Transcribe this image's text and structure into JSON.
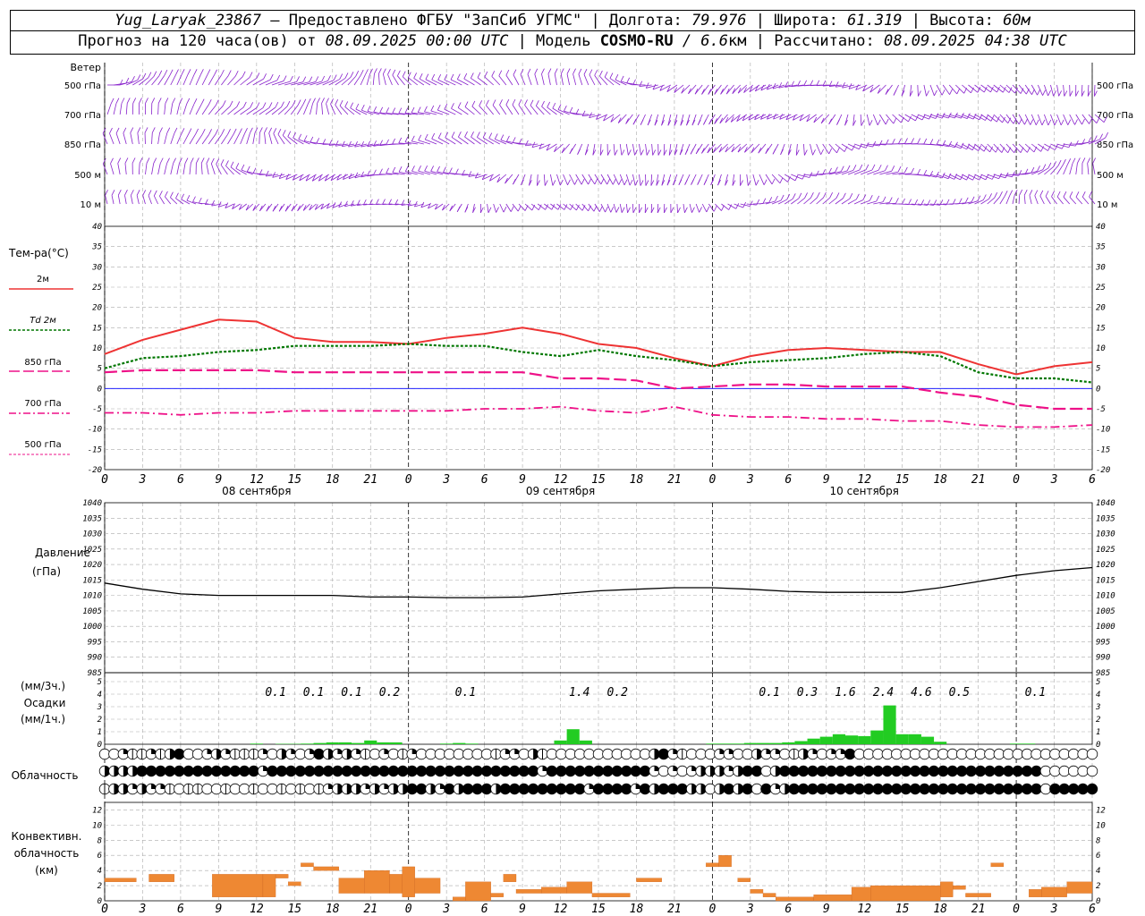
{
  "header": {
    "station": "Yug_Laryak_23867",
    "provider": " – Предоставлено ФГБУ \"ЗапСиб УГМС\" | Долгота: ",
    "lon": "79.976",
    "lat_label": " | Широта: ",
    "lat": "61.319",
    "alt_label": " | Высота: ",
    "alt": "60м",
    "forecast_label": "Прогноз на 120 часа(ов) от ",
    "forecast_from": "08.09.2025 00:00 UTC",
    "model_label": "  | Модель ",
    "model": "COSMO-RU",
    "model_res": " / 6.6",
    "model_unit": "км",
    "calc_label": " | Рассчитано: ",
    "calc_time": "08.09.2025 04:38 UTC"
  },
  "panels": {
    "wind": {
      "title": "Ветер",
      "levels": [
        "500 гПа",
        "700 гПа",
        "850 гПа",
        "500 м",
        "10  м"
      ]
    },
    "temp": {
      "title": "Тем-ра(°C)",
      "legend": [
        "2м",
        "Td  2м",
        "850 гПа",
        "700 гПа",
        "500 гПа"
      ]
    },
    "pressure": {
      "title": "Давление",
      "unit": "(гПа)"
    },
    "precip": {
      "title_top": "(мм/3ч.)",
      "title": "Осадки",
      "title_bottom": "(мм/1ч.)"
    },
    "cloud": {
      "title": "Облачность"
    },
    "conv": {
      "title": [
        "Конвективн.",
        "облачность",
        "(км)"
      ]
    }
  },
  "colors": {
    "t2m": "#ee3333",
    "td": "#007700",
    "p850": "#ee1188",
    "wind": "#8822cc",
    "precip": "#22cc22",
    "conv": "#ee8833",
    "zero": "#0000ff"
  },
  "chart_data": [
    {
      "type": "line",
      "title": "Тем-ра(°C)",
      "x_hours_from": "08.09.2025 00:00 UTC",
      "x_ticks": [
        "0",
        "3",
        "6",
        "9",
        "12",
        "15",
        "18",
        "21",
        "0",
        "3",
        "6",
        "9",
        "12",
        "15",
        "18",
        "21",
        "0",
        "3",
        "6",
        "9",
        "12",
        "15",
        "18",
        "21",
        "0",
        "3",
        "6"
      ],
      "day_labels": [
        "08 сентября",
        "09 сентября",
        "10 сентября"
      ],
      "ylim": [
        -20,
        40
      ],
      "yticks": [
        -20,
        -15,
        -10,
        -5,
        0,
        5,
        10,
        15,
        20,
        25,
        30,
        35,
        40
      ],
      "x": [
        0,
        3,
        6,
        9,
        12,
        15,
        18,
        21,
        24,
        27,
        30,
        33,
        36,
        39,
        42,
        45,
        48,
        51,
        54,
        57,
        60,
        63,
        66,
        69,
        72,
        75,
        78
      ],
      "series": [
        {
          "name": "2м",
          "values": [
            8.5,
            12,
            14.5,
            17,
            16.5,
            12.5,
            11.5,
            11.5,
            11,
            12.5,
            13.5,
            15,
            13.5,
            11,
            10,
            7.5,
            5.5,
            8,
            9.5,
            10,
            9.5,
            9,
            9,
            6,
            3.5,
            5.5,
            6.5
          ]
        },
        {
          "name": "Td  2м",
          "values": [
            5,
            7.5,
            8,
            9,
            9.5,
            10.5,
            10.5,
            10.5,
            11,
            10.5,
            10.5,
            9,
            8,
            9.5,
            8,
            7,
            5.5,
            6.5,
            7,
            7.5,
            8.5,
            9,
            8,
            4,
            2.5,
            2.5,
            1.5
          ]
        },
        {
          "name": "850 гПа",
          "values": [
            4,
            4.5,
            4.5,
            4.5,
            4.5,
            4,
            4,
            4,
            4,
            4,
            4,
            4,
            2.5,
            2.5,
            2,
            0,
            0.5,
            1,
            1,
            0.5,
            0.5,
            0.5,
            -1,
            -2,
            -4,
            -5,
            -5
          ]
        },
        {
          "name": "700 гПа",
          "values": [
            -6,
            -6,
            -6.5,
            -6,
            -6,
            -5.5,
            -5.5,
            -5.5,
            -5.5,
            -5.5,
            -5,
            -5,
            -4.5,
            -5.5,
            -6,
            -4.5,
            -6.5,
            -7,
            -7,
            -7.5,
            -7.5,
            -8,
            -8,
            -9,
            -9.5,
            -9.5,
            -9
          ]
        }
      ]
    },
    {
      "type": "line",
      "title": "Давление",
      "ylabel": "(гПа)",
      "ylim": [
        985,
        1040
      ],
      "yticks": [
        985,
        990,
        995,
        1000,
        1005,
        1010,
        1015,
        1020,
        1025,
        1030,
        1035,
        1040
      ],
      "x": [
        0,
        3,
        6,
        9,
        12,
        15,
        18,
        21,
        24,
        27,
        30,
        33,
        36,
        39,
        42,
        45,
        48,
        51,
        54,
        57,
        60,
        63,
        66,
        69,
        72,
        75,
        78
      ],
      "values": [
        1014,
        1012,
        1010.5,
        1010,
        1010,
        1010,
        1010,
        1009.5,
        1009.5,
        1009.3,
        1009.3,
        1009.5,
        1010.5,
        1011.5,
        1012,
        1012.5,
        1012.5,
        1012,
        1011.3,
        1011,
        1011,
        1011,
        1012.5,
        1014.5,
        1016.5,
        1018,
        1019
      ]
    },
    {
      "type": "bar",
      "title": "Осадки",
      "ylabel": "(мм/1ч.)",
      "ylim": [
        0,
        5
      ],
      "yticks": [
        0,
        1,
        2,
        3,
        4,
        5
      ],
      "x_hours": [
        12,
        13,
        14,
        15,
        16,
        17,
        18,
        19,
        20,
        21,
        22,
        23,
        24,
        25,
        26,
        27,
        28,
        29,
        30,
        31,
        32,
        33,
        34,
        35,
        36,
        37,
        38,
        39,
        40,
        41,
        42,
        43,
        44,
        45,
        46,
        47,
        48,
        49,
        50,
        51,
        52,
        53,
        54,
        55,
        56,
        57,
        58,
        59,
        60,
        61,
        62,
        63,
        64,
        65,
        66,
        67,
        68,
        69,
        70,
        71,
        72,
        73,
        74,
        75,
        76,
        77,
        78
      ],
      "values": [
        0.05,
        0,
        0.03,
        0.03,
        0.05,
        0.1,
        0.15,
        0.15,
        0.1,
        0.3,
        0.15,
        0.15,
        0,
        0,
        0,
        0.05,
        0.1,
        0.05,
        0,
        0,
        0,
        0,
        0,
        0,
        0.3,
        1.2,
        0.3,
        0,
        0,
        0,
        0,
        0,
        0,
        0,
        0,
        0,
        0.05,
        0.05,
        0.05,
        0.1,
        0.1,
        0.1,
        0.15,
        0.25,
        0.45,
        0.6,
        0.8,
        0.7,
        0.65,
        1.1,
        3.1,
        0.8,
        0.8,
        0.6,
        0.2,
        0,
        0,
        0,
        0,
        0,
        0.05,
        0.05,
        0,
        0,
        0,
        0,
        0
      ],
      "totals_3h": [
        {
          "hour": 13.5,
          "label": "0.1"
        },
        {
          "hour": 16.5,
          "label": "0.1"
        },
        {
          "hour": 19.5,
          "label": "0.1"
        },
        {
          "hour": 22.5,
          "label": "0.2"
        },
        {
          "hour": 28.5,
          "label": "0.1"
        },
        {
          "hour": 37.5,
          "label": "1.4"
        },
        {
          "hour": 40.5,
          "label": "0.2"
        },
        {
          "hour": 52.5,
          "label": "0.1"
        },
        {
          "hour": 55.5,
          "label": "0.3"
        },
        {
          "hour": 58.5,
          "label": "1.6"
        },
        {
          "hour": 61.5,
          "label": "2.4"
        },
        {
          "hour": 64.5,
          "label": "4.6"
        },
        {
          "hour": 67.5,
          "label": "0.5"
        },
        {
          "hour": 73.5,
          "label": "0.1"
        }
      ]
    },
    {
      "type": "bar",
      "title": "Конвективн. облачность (км)",
      "ylim": [
        0,
        13
      ],
      "yticks": [
        0,
        2,
        4,
        6,
        8,
        10,
        12
      ],
      "segments": [
        {
          "h0": 0,
          "h1": 2.5,
          "bottom": 2.5,
          "top": 3
        },
        {
          "h0": 3.5,
          "h1": 5.5,
          "bottom": 2.5,
          "top": 3.5
        },
        {
          "h0": 8.5,
          "h1": 12.5,
          "bottom": 0.5,
          "top": 3.5
        },
        {
          "h0": 12.5,
          "h1": 13.5,
          "bottom": 0.5,
          "top": 3.5
        },
        {
          "h0": 13.5,
          "h1": 14.5,
          "bottom": 3,
          "top": 3.5
        },
        {
          "h0": 14.5,
          "h1": 15.5,
          "bottom": 2,
          "top": 2.5
        },
        {
          "h0": 15.5,
          "h1": 16.5,
          "bottom": 4.5,
          "top": 5
        },
        {
          "h0": 16.5,
          "h1": 18.5,
          "bottom": 4,
          "top": 4.5
        },
        {
          "h0": 18.5,
          "h1": 20.5,
          "bottom": 1,
          "top": 3
        },
        {
          "h0": 20.5,
          "h1": 22.5,
          "bottom": 1,
          "top": 4
        },
        {
          "h0": 22.5,
          "h1": 23.5,
          "bottom": 1,
          "top": 3.5
        },
        {
          "h0": 23.5,
          "h1": 24.5,
          "bottom": 0.5,
          "top": 4.5
        },
        {
          "h0": 24.5,
          "h1": 26.5,
          "bottom": 1,
          "top": 3
        },
        {
          "h0": 27.5,
          "h1": 28.5,
          "bottom": 0,
          "top": 0.5
        },
        {
          "h0": 28.5,
          "h1": 30.5,
          "bottom": 0,
          "top": 2.5
        },
        {
          "h0": 30.5,
          "h1": 31.5,
          "bottom": 0.5,
          "top": 1
        },
        {
          "h0": 31.5,
          "h1": 32.5,
          "bottom": 2.5,
          "top": 3.5
        },
        {
          "h0": 32.5,
          "h1": 34.5,
          "bottom": 1,
          "top": 1.5
        },
        {
          "h0": 34.5,
          "h1": 36.5,
          "bottom": 1,
          "top": 1.8
        },
        {
          "h0": 36.5,
          "h1": 38.5,
          "bottom": 1,
          "top": 2.5
        },
        {
          "h0": 38.5,
          "h1": 41.5,
          "bottom": 0.5,
          "top": 1
        },
        {
          "h0": 42,
          "h1": 44,
          "bottom": 2.5,
          "top": 3
        },
        {
          "h0": 47.5,
          "h1": 48.5,
          "bottom": 4.5,
          "top": 5
        },
        {
          "h0": 48.5,
          "h1": 49.5,
          "bottom": 4.5,
          "top": 6
        },
        {
          "h0": 50,
          "h1": 51,
          "bottom": 2.5,
          "top": 3
        },
        {
          "h0": 51,
          "h1": 52,
          "bottom": 1,
          "top": 1.5
        },
        {
          "h0": 52,
          "h1": 53,
          "bottom": 0.5,
          "top": 1
        },
        {
          "h0": 53,
          "h1": 56,
          "bottom": 0,
          "top": 0.5
        },
        {
          "h0": 56,
          "h1": 59,
          "bottom": 0,
          "top": 0.8
        },
        {
          "h0": 59,
          "h1": 60.5,
          "bottom": 0,
          "top": 1.8
        },
        {
          "h0": 60.5,
          "h1": 66,
          "bottom": 0,
          "top": 2
        },
        {
          "h0": 66,
          "h1": 67,
          "bottom": 0.5,
          "top": 2.5
        },
        {
          "h0": 67,
          "h1": 68,
          "bottom": 1.5,
          "top": 2
        },
        {
          "h0": 68,
          "h1": 70,
          "bottom": 0.5,
          "top": 1
        },
        {
          "h0": 70,
          "h1": 71,
          "bottom": 4.5,
          "top": 5
        },
        {
          "h0": 73,
          "h1": 74,
          "bottom": 0.5,
          "top": 1.5
        },
        {
          "h0": 74,
          "h1": 76,
          "bottom": 0.5,
          "top": 1.8
        },
        {
          "h0": 76,
          "h1": 78,
          "bottom": 1,
          "top": 2.5
        }
      ]
    }
  ],
  "cloud_rows": {
    "top": [
      0,
      0,
      2,
      1,
      1,
      2,
      1,
      3,
      4,
      0,
      0,
      2,
      3,
      2,
      1,
      1,
      1,
      2,
      0,
      3,
      2,
      0,
      2,
      4,
      3,
      2,
      3,
      2,
      1,
      0,
      2,
      0,
      1,
      2,
      0,
      0,
      0,
      0,
      0,
      0,
      0,
      0,
      1,
      2,
      2,
      0,
      3,
      1,
      0,
      0,
      0,
      0,
      0,
      0,
      0,
      0,
      0,
      0,
      0,
      3,
      4,
      2,
      1,
      0,
      0,
      0,
      2,
      2,
      0,
      0,
      3,
      2,
      2,
      0,
      1,
      3,
      2,
      0,
      2,
      2,
      4,
      0,
      0,
      0,
      0,
      0,
      0,
      0,
      0,
      0,
      0,
      0,
      0,
      0,
      0,
      0,
      0,
      0,
      0,
      0,
      0,
      0,
      0,
      0,
      0,
      0,
      0
    ],
    "middle": [
      3,
      3,
      3,
      3,
      4,
      4,
      4,
      4,
      4,
      4,
      4,
      4,
      4,
      4,
      4,
      4,
      4,
      2,
      4,
      4,
      4,
      4,
      4,
      4,
      4,
      4,
      4,
      4,
      4,
      4,
      4,
      4,
      4,
      4,
      4,
      4,
      4,
      4,
      4,
      4,
      4,
      4,
      4,
      4,
      4,
      4,
      4,
      2,
      4,
      4,
      4,
      4,
      4,
      4,
      4,
      4,
      4,
      4,
      4,
      2,
      0,
      2,
      0,
      2,
      3,
      3,
      3,
      2,
      3,
      4,
      4,
      0,
      3,
      4,
      4,
      4,
      4,
      4,
      4,
      4,
      4,
      4,
      4,
      4,
      4,
      4,
      4,
      4,
      4,
      4,
      4,
      4,
      4,
      4,
      4,
      4,
      4,
      4,
      4,
      4,
      4,
      0,
      0,
      0,
      0,
      0,
      0
    ],
    "bottom": [
      1,
      3,
      3,
      2,
      3,
      2,
      2,
      1,
      0,
      1,
      1,
      0,
      0,
      1,
      0,
      0,
      1,
      0,
      0,
      1,
      0,
      1,
      0,
      1,
      2,
      3,
      3,
      3,
      2,
      3,
      2,
      3,
      3,
      4,
      4,
      3,
      2,
      4,
      3,
      4,
      4,
      4,
      3,
      4,
      4,
      4,
      4,
      4,
      4,
      4,
      4,
      4,
      2,
      4,
      4,
      4,
      4,
      2,
      4,
      3,
      4,
      4,
      4,
      3,
      3,
      0,
      3,
      4,
      3,
      4,
      0,
      4,
      2,
      3,
      4,
      4,
      4,
      4,
      4,
      4,
      4,
      4,
      4,
      4,
      4,
      4,
      4,
      4,
      4,
      4,
      4,
      4,
      4,
      4,
      4,
      4,
      4,
      4,
      4,
      4,
      4,
      0,
      4,
      4,
      4,
      4,
      4
    ]
  }
}
